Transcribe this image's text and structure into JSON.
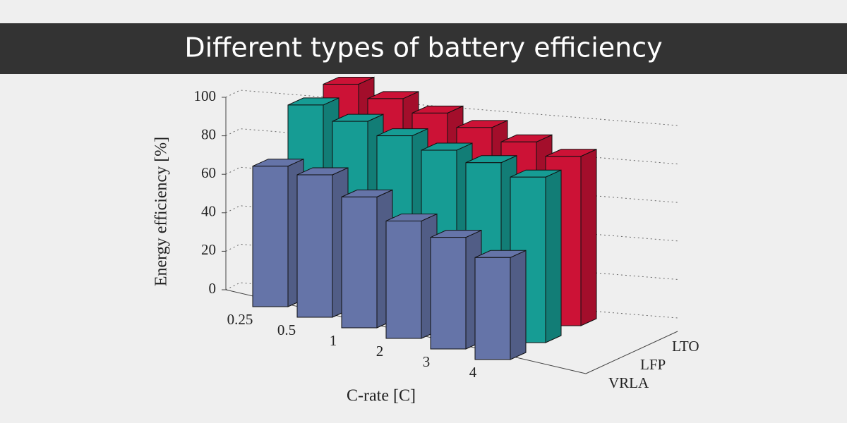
{
  "chart_data": {
    "type": "bar3d",
    "title": "Different types of battery efficiency",
    "y_label": "Energy efficiency [%]",
    "x_label": "C-rate [C]",
    "categories": [
      "0.25",
      "0.5",
      "1",
      "2",
      "3",
      "4"
    ],
    "series": [
      {
        "name": "VRLA",
        "color": "#6574a8",
        "values": [
          73,
          74,
          68,
          61,
          58,
          53
        ]
      },
      {
        "name": "LFP",
        "color": "#169c94",
        "values": [
          96,
          93,
          91,
          89,
          88,
          86
        ]
      },
      {
        "name": "LTO",
        "color": "#cc1236",
        "values": [
          98,
          96,
          94,
          92,
          90,
          88
        ]
      }
    ],
    "ylim": [
      0,
      100
    ],
    "yticks": [
      0,
      20,
      40,
      60,
      80,
      100
    ],
    "grid": true
  }
}
